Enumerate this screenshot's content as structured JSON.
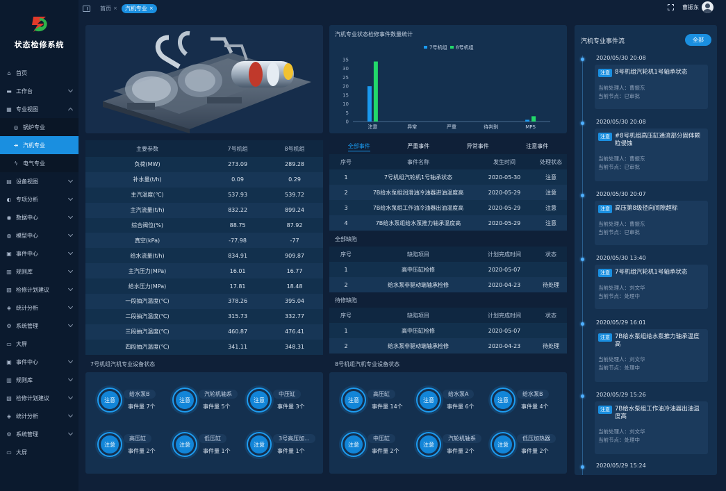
{
  "app": {
    "title": "状态检修系统"
  },
  "sidebar": {
    "items": [
      {
        "label": "首页",
        "icon": "home-icon",
        "glyph": "⌂"
      },
      {
        "label": "工作台",
        "icon": "desk-icon",
        "glyph": "▬"
      },
      {
        "label": "专业视图",
        "icon": "grid-icon",
        "glyph": "▦"
      },
      {
        "label": "锅炉专业",
        "icon": "boiler-icon",
        "glyph": "◎"
      },
      {
        "label": "汽机专业",
        "icon": "turbine-icon",
        "glyph": "↠"
      },
      {
        "label": "电气专业",
        "icon": "lightning-icon",
        "glyph": "ϟ"
      },
      {
        "label": "设备视图",
        "icon": "device-icon",
        "glyph": "▤"
      },
      {
        "label": "专项分析",
        "icon": "analysis-icon",
        "glyph": "◐"
      },
      {
        "label": "数据中心",
        "icon": "data-icon",
        "glyph": "◉"
      },
      {
        "label": "模型中心",
        "icon": "model-icon",
        "glyph": "◍"
      },
      {
        "label": "事件中心",
        "icon": "event-icon",
        "glyph": "▣"
      },
      {
        "label": "规则库",
        "icon": "rules-icon",
        "glyph": "▥"
      },
      {
        "label": "检修计划建议",
        "icon": "plan-icon",
        "glyph": "▧"
      },
      {
        "label": "统计分析",
        "icon": "stats-icon",
        "glyph": "◈"
      },
      {
        "label": "系统管理",
        "icon": "wrench-icon",
        "glyph": "⚙"
      },
      {
        "label": "大屏",
        "icon": "screen-icon",
        "glyph": "▭"
      },
      {
        "label": "事件中心",
        "icon": "event-icon",
        "glyph": "▣"
      },
      {
        "label": "规则库",
        "icon": "rules-icon",
        "glyph": "▥"
      },
      {
        "label": "检修计划建议",
        "icon": "plan-icon",
        "glyph": "▧"
      },
      {
        "label": "统计分析",
        "icon": "stats-icon",
        "glyph": "◈"
      },
      {
        "label": "系统管理",
        "icon": "wrench-icon",
        "glyph": "⚙"
      },
      {
        "label": "大屏",
        "icon": "screen-icon",
        "glyph": "▭"
      }
    ]
  },
  "topbar": {
    "tabs": [
      {
        "label": "首页"
      },
      {
        "label": "汽机专业"
      }
    ],
    "username": "曹振东"
  },
  "params": {
    "headers": [
      "主要参数",
      "7号机组",
      "8号机组"
    ],
    "rows": [
      [
        "负荷(MW)",
        "273.09",
        "289.28"
      ],
      [
        "补水量(t/h)",
        "0.09",
        "0.29"
      ],
      [
        "主汽温度(℃)",
        "537.93",
        "539.72"
      ],
      [
        "主汽流量(t/h)",
        "832.22",
        "899.24"
      ],
      [
        "综合阀位(%)",
        "88.75",
        "87.92"
      ],
      [
        "真空(kPa)",
        "-77.98",
        "-77"
      ],
      [
        "给水流量(t/h)",
        "834.91",
        "909.87"
      ],
      [
        "主汽压力(MPa)",
        "16.01",
        "16.77"
      ],
      [
        "给水压力(MPa)",
        "17.81",
        "18.48"
      ],
      [
        "一段抽汽温度(℃)",
        "378.26",
        "395.04"
      ],
      [
        "二段抽汽温度(℃)",
        "315.73",
        "332.77"
      ],
      [
        "三段抽汽温度(℃)",
        "460.87",
        "476.41"
      ],
      [
        "四段抽汽温度(℃)",
        "341.11",
        "348.31"
      ]
    ]
  },
  "unit7_status": {
    "title": "7号机组汽机专业设备状态",
    "devices": [
      {
        "badge": "注意",
        "name": "给水泵B",
        "count": "事件量 7个"
      },
      {
        "badge": "注意",
        "name": "汽轮机轴系",
        "count": "事件量 5个"
      },
      {
        "badge": "注意",
        "name": "中压缸",
        "count": "事件量 3个"
      },
      {
        "badge": "注意",
        "name": "高压缸",
        "count": "事件量 2个"
      },
      {
        "badge": "注意",
        "name": "低压缸",
        "count": "事件量 1个"
      },
      {
        "badge": "注意",
        "name": "3号高压加...",
        "count": "事件量 1个"
      }
    ]
  },
  "unit8_status": {
    "title": "8号机组汽机专业设备状态",
    "devices": [
      {
        "badge": "注意",
        "name": "高压缸",
        "count": "事件量 14个"
      },
      {
        "badge": "注意",
        "name": "给水泵A",
        "count": "事件量 6个"
      },
      {
        "badge": "注意",
        "name": "给水泵B",
        "count": "事件量 4个"
      },
      {
        "badge": "注意",
        "name": "中压缸",
        "count": "事件量 2个"
      },
      {
        "badge": "注意",
        "name": "汽轮机轴系",
        "count": "事件量 2个"
      },
      {
        "badge": "注意",
        "name": "低压加热器",
        "count": "事件量 2个"
      }
    ]
  },
  "chart_data": {
    "type": "bar",
    "title": "汽机专业状态检修事件数量统计",
    "categories": [
      "注意",
      "异常",
      "严重",
      "待判别",
      "MPS"
    ],
    "series": [
      {
        "name": "7号机组",
        "values": [
          20,
          0,
          0,
          0,
          1
        ],
        "color": "#1a9af0"
      },
      {
        "name": "8号机组",
        "values": [
          34,
          0,
          0,
          0,
          3
        ],
        "color": "#22d86a"
      }
    ],
    "ylim": [
      0,
      35
    ],
    "yticks": [
      "0",
      "5",
      "10",
      "15",
      "20",
      "25",
      "30",
      "35"
    ],
    "legend": "top-center",
    "grid": false
  },
  "event_tabs": [
    {
      "label": "全部事件"
    },
    {
      "label": "严重事件"
    },
    {
      "label": "异常事件"
    },
    {
      "label": "注意事件"
    }
  ],
  "events_table": {
    "headers": [
      "序号",
      "事件名称",
      "发生时间",
      "处理状态"
    ],
    "rows": [
      [
        "1",
        "7号机组汽轮机1号轴承状态",
        "2020-05-30",
        "注意"
      ],
      [
        "2",
        "7B给水泵组润滑油冷油器进油温度高",
        "2020-05-29",
        "注意"
      ],
      [
        "3",
        "7B给水泵组工作油冷油器出油温度高",
        "2020-05-29",
        "注意"
      ],
      [
        "4",
        "7B给水泵组给水泵推力轴承温度高",
        "2020-05-29",
        "注意"
      ]
    ]
  },
  "all_defects": {
    "title": "全部缺陷",
    "headers": [
      "序号",
      "缺陷项目",
      "计划完成时间",
      "状态"
    ],
    "rows": [
      [
        "1",
        "高中压缸检修",
        "2020-05-07",
        ""
      ],
      [
        "2",
        "给水泵非驱动端轴承检修",
        "2020-04-23",
        "待处理"
      ]
    ]
  },
  "pending_defects": {
    "title": "待修缺陷",
    "headers": [
      "序号",
      "缺陷项目",
      "计划完成时间",
      "状态"
    ],
    "rows": [
      [
        "1",
        "高中压缸检修",
        "2020-05-07",
        ""
      ],
      [
        "2",
        "给水泵非驱动端轴承检修",
        "2020-04-23",
        "待处理"
      ]
    ]
  },
  "event_stream": {
    "title": "汽机专业事件流",
    "all_label": "全部",
    "items": [
      {
        "time": "2020/05/30 20:08",
        "badge": "注意",
        "title": "8号机组汽轮机1号轴承状态",
        "handler": "当前处理人：曹振东",
        "node": "当前节点：已审批"
      },
      {
        "time": "2020/05/30 20:08",
        "badge": "注意",
        "title": "#8号机组高压缸通流部分固体颗粒侵蚀",
        "handler": "当前处理人：曹振东",
        "node": "当前节点：已审批"
      },
      {
        "time": "2020/05/30 20:07",
        "badge": "注意",
        "title": "高压第8级径向间隙超标",
        "handler": "当前处理人：曹振东",
        "node": "当前节点：已审批"
      },
      {
        "time": "2020/05/30 13:40",
        "badge": "注意",
        "title": "7号机组汽轮机1号轴承状态",
        "handler": "当前处理人：刘文华",
        "node": "当前节点：处理中"
      },
      {
        "time": "2020/05/29 16:01",
        "badge": "注意",
        "title": "7B给水泵组给水泵推力轴承温度高",
        "handler": "当前处理人：刘文华",
        "node": "当前节点：处理中"
      },
      {
        "time": "2020/05/29 15:26",
        "badge": "注意",
        "title": "7B给水泵组工作油冷油器出油温度高",
        "handler": "当前处理人：刘文华",
        "node": "当前节点：处理中"
      },
      {
        "time": "2020/05/29 15:24",
        "badge": "",
        "title": "",
        "handler": "",
        "node": ""
      }
    ]
  }
}
